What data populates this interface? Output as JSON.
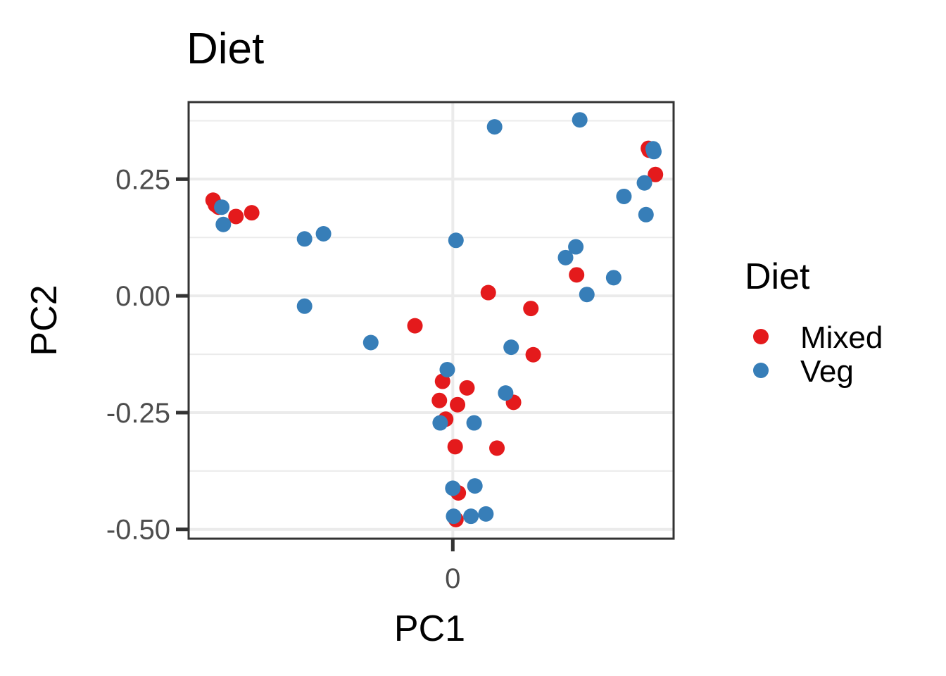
{
  "chart_data": {
    "type": "scatter",
    "title": "Diet",
    "xlabel": "PC1",
    "ylabel": "PC2",
    "xlim": [
      -0.335,
      0.28
    ],
    "ylim": [
      -0.52,
      0.415
    ],
    "x_ticks": [
      0
    ],
    "x_tick_labels": [
      "0"
    ],
    "y_ticks": [
      0.25,
      0.0,
      -0.25,
      -0.5
    ],
    "y_tick_labels": [
      "0.25",
      "0.00",
      "-0.25",
      "-0.50"
    ],
    "grid": true,
    "legend": {
      "title": "Diet",
      "position": "right"
    },
    "series": [
      {
        "name": "Mixed",
        "color": "#E41A1C",
        "points": [
          [
            -0.304,
            0.205
          ],
          [
            -0.301,
            0.195
          ],
          [
            -0.297,
            0.19
          ],
          [
            -0.275,
            0.17
          ],
          [
            -0.255,
            0.178
          ],
          [
            -0.048,
            -0.064
          ],
          [
            -0.013,
            -0.183
          ],
          [
            -0.017,
            -0.224
          ],
          [
            -0.009,
            -0.264
          ],
          [
            0.018,
            -0.197
          ],
          [
            0.006,
            -0.233
          ],
          [
            0.003,
            -0.323
          ],
          [
            0.007,
            -0.422
          ],
          [
            0.004,
            -0.479
          ],
          [
            0.045,
            0.007
          ],
          [
            0.056,
            -0.326
          ],
          [
            0.077,
            -0.228
          ],
          [
            0.099,
            -0.027
          ],
          [
            0.102,
            -0.126
          ],
          [
            0.157,
            0.045
          ],
          [
            0.248,
            0.316
          ],
          [
            0.249,
            0.312
          ],
          [
            0.257,
            0.26
          ]
        ]
      },
      {
        "name": "Veg",
        "color": "#377EB8",
        "points": [
          [
            -0.293,
            0.19
          ],
          [
            -0.291,
            0.153
          ],
          [
            -0.188,
            0.122
          ],
          [
            -0.164,
            0.133
          ],
          [
            -0.188,
            -0.022
          ],
          [
            -0.104,
            -0.1
          ],
          [
            -0.007,
            -0.158
          ],
          [
            -0.016,
            -0.272
          ],
          [
            0.004,
            0.119
          ],
          [
            0.0,
            -0.412
          ],
          [
            0.028,
            -0.407
          ],
          [
            0.027,
            -0.272
          ],
          [
            0.001,
            -0.472
          ],
          [
            0.023,
            -0.472
          ],
          [
            0.042,
            -0.467
          ],
          [
            0.053,
            0.362
          ],
          [
            0.067,
            -0.208
          ],
          [
            0.074,
            -0.11
          ],
          [
            0.143,
            0.082
          ],
          [
            0.156,
            0.105
          ],
          [
            0.17,
            0.003
          ],
          [
            0.161,
            0.377
          ],
          [
            0.204,
            0.039
          ],
          [
            0.217,
            0.213
          ],
          [
            0.243,
            0.242
          ],
          [
            0.245,
            0.174
          ],
          [
            0.254,
            0.315
          ],
          [
            0.255,
            0.309
          ]
        ]
      }
    ]
  }
}
